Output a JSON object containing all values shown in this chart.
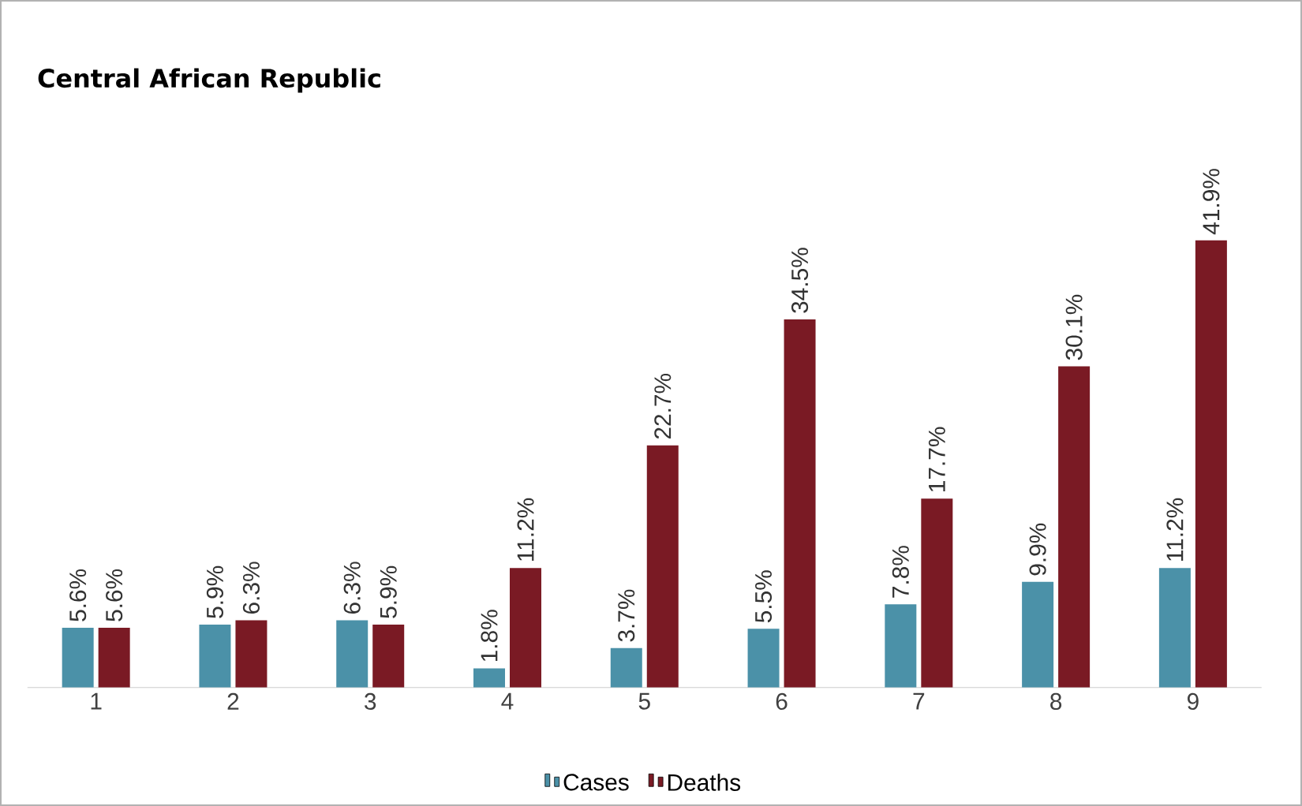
{
  "chart_data": {
    "type": "bar",
    "title": "Central African Republic",
    "categories": [
      "1",
      "2",
      "3",
      "4",
      "5",
      "6",
      "7",
      "8",
      "9"
    ],
    "series": [
      {
        "name": "Cases",
        "color": "#4b91a8",
        "values": [
          5.6,
          5.9,
          6.3,
          1.8,
          3.7,
          5.5,
          7.8,
          9.9,
          11.2
        ],
        "value_labels": [
          "5.6%",
          "5.9%",
          "6.3%",
          "1.8%",
          "3.7%",
          "5.5%",
          "7.8%",
          "9.9%",
          "11.2%"
        ]
      },
      {
        "name": "Deaths",
        "color": "#7a1a24",
        "values": [
          5.6,
          6.3,
          5.9,
          11.2,
          22.7,
          34.5,
          17.7,
          30.1,
          41.9
        ],
        "value_labels": [
          "5.6%",
          "6.3%",
          "5.9%",
          "11.2%",
          "22.7%",
          "34.5%",
          "17.7%",
          "30.1%",
          "41.9%"
        ]
      }
    ],
    "legend": "bottom"
  }
}
